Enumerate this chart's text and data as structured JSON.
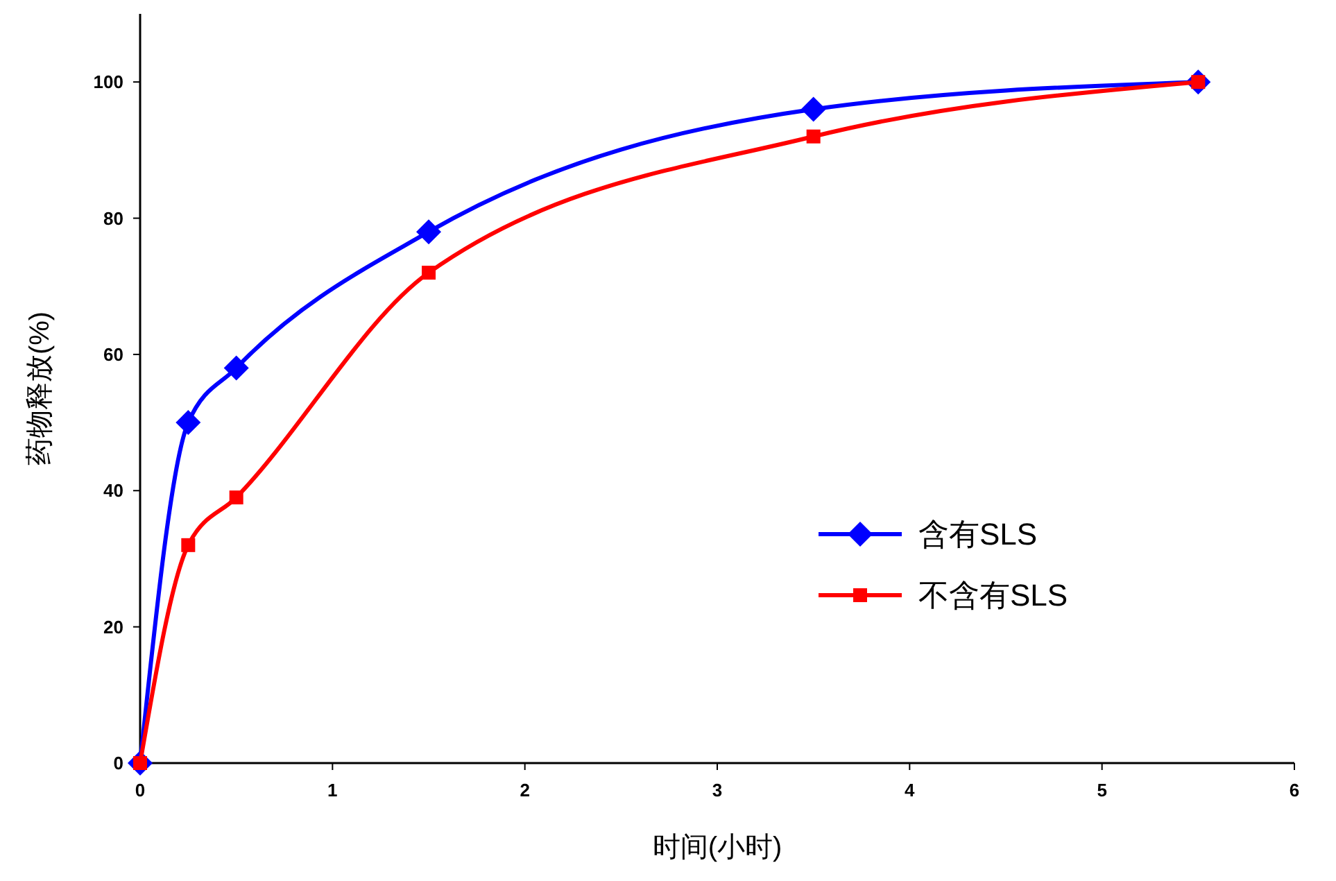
{
  "chart_data": {
    "type": "line",
    "xlabel": "时间(小时)",
    "ylabel": "药物释放(%)",
    "x": [
      0,
      0.25,
      0.5,
      1.5,
      3.5,
      5.5
    ],
    "series": [
      {
        "name": "含有SLS",
        "color": "#0000ff",
        "marker": "diamond",
        "values": [
          0,
          50,
          58,
          78,
          96,
          100
        ]
      },
      {
        "name": "不含有SLS",
        "color": "#ff0000",
        "marker": "square",
        "values": [
          0,
          32,
          39,
          72,
          92,
          100
        ]
      }
    ],
    "xlim": [
      0,
      6
    ],
    "xticks": [
      0,
      1,
      2,
      3,
      4,
      5,
      6
    ],
    "ylim": [
      0,
      110
    ],
    "yticks": [
      0,
      20,
      40,
      60,
      80,
      100
    ],
    "grid": false,
    "legend": "right",
    "line_style": "solid"
  }
}
